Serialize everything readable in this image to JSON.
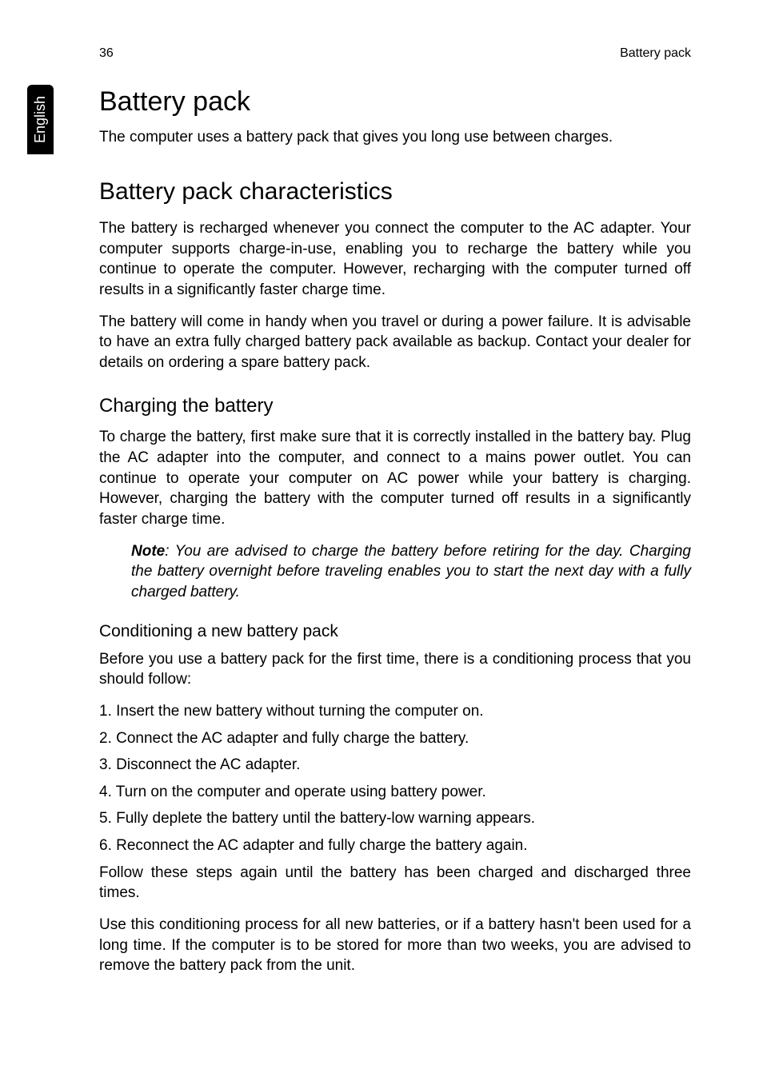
{
  "colors": {
    "background": "#ffffff",
    "text": "#000000",
    "tab_bg": "#000000",
    "tab_text": "#ffffff"
  },
  "typography": {
    "body_fontsize_pt": 14,
    "h1_fontsize_pt": 26,
    "h2_fontsize_pt": 22,
    "h3_fontsize_pt": 18,
    "h4_fontsize_pt": 16,
    "font_family": "Arial"
  },
  "header": {
    "page_number": "36",
    "section": "Battery pack"
  },
  "side_tab": "English",
  "h1": "Battery pack",
  "intro": "The computer uses a battery pack that gives you long use between charges.",
  "h2": "Battery pack characteristics",
  "char_p1": "The battery is recharged whenever you connect the computer to the AC adapter. Your computer supports charge-in-use, enabling you to recharge the battery while you continue to operate the computer. However, recharging with the computer turned off results in a significantly faster charge time.",
  "char_p2": "The battery will come in handy when you travel or during a power failure. It is advisable to have an extra fully charged battery pack available as backup. Contact your dealer for details on ordering a spare battery pack.",
  "h3": "Charging the battery",
  "charge_p1": "To charge the battery, first make sure that it is correctly installed in the battery bay. Plug the AC adapter into the computer, and connect to a mains power outlet. You can continue to operate your computer on AC power while your battery is charging. However, charging the battery with the computer turned off results in a significantly faster charge time.",
  "note_label": "Note",
  "note_text": ": You are advised to charge the battery before retiring for the day. Charging the battery overnight before traveling enables you to start the next day with a fully charged battery.",
  "h4": "Conditioning a new battery pack",
  "cond_intro": "Before you use a battery pack for the first time, there is a conditioning process that you should follow:",
  "steps": {
    "s1": "1. Insert the new battery without turning the computer on.",
    "s2": "2. Connect the AC adapter and fully charge the battery.",
    "s3": "3. Disconnect the AC adapter.",
    "s4": "4. Turn on the computer and operate using battery power.",
    "s5": "5. Fully deplete the battery until the battery-low warning appears.",
    "s6": "6. Reconnect the AC adapter and fully charge the battery again."
  },
  "cond_p2": "Follow these steps again until the battery has been charged and discharged three times.",
  "cond_p3": "Use this conditioning process for all new batteries, or if a battery hasn't been used for a long time. If the computer is to be stored for more than two weeks, you are advised to remove the battery pack from the unit."
}
